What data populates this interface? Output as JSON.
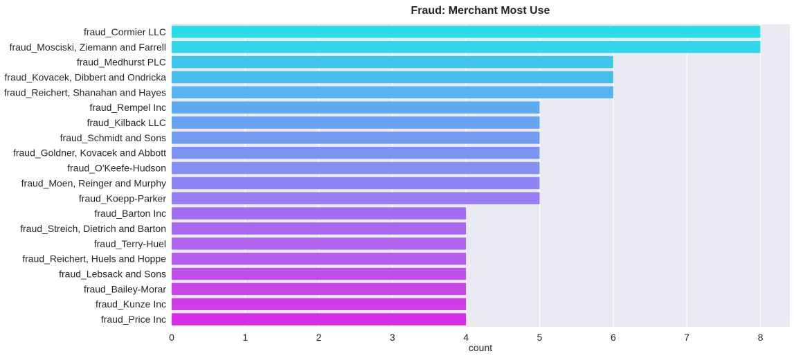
{
  "chart_data": {
    "type": "bar",
    "orientation": "horizontal",
    "title": "Fraud: Merchant Most Use",
    "xlabel": "count",
    "ylabel": "",
    "xlim": [
      0,
      8.4
    ],
    "xticks": [
      0,
      1,
      2,
      3,
      4,
      5,
      6,
      7,
      8
    ],
    "grid": true,
    "legend": "none",
    "palette": "cool",
    "plot_background": "#eaeaf2",
    "categories": [
      "fraud_Cormier LLC",
      "fraud_Mosciski, Ziemann and Farrell",
      "fraud_Medhurst PLC",
      "fraud_Kovacek, Dibbert and Ondricka",
      "fraud_Reichert, Shanahan and Hayes",
      "fraud_Rempel Inc",
      "fraud_Kilback LLC",
      "fraud_Schmidt and Sons",
      "fraud_Goldner, Kovacek and Abbott",
      "fraud_O'Keefe-Hudson",
      "fraud_Moen, Reinger and Murphy",
      "fraud_Koepp-Parker",
      "fraud_Barton Inc",
      "fraud_Streich, Dietrich and Barton",
      "fraud_Terry-Huel",
      "fraud_Reichert, Huels and Hoppe",
      "fraud_Lebsack and Sons",
      "fraud_Bailey-Morar",
      "fraud_Kunze Inc",
      "fraud_Price Inc"
    ],
    "values": [
      8,
      8,
      6,
      6,
      6,
      5,
      5,
      5,
      5,
      5,
      5,
      5,
      4,
      4,
      4,
      4,
      4,
      4,
      4,
      4
    ],
    "colors": [
      "#2adde6",
      "#35d6ec",
      "#3fc6ea",
      "#48bceb",
      "#56b4ee",
      "#5dabee",
      "#66a2f0",
      "#719df1",
      "#7b94f1",
      "#868ff2",
      "#8f84f3",
      "#997df3",
      "#a26ff2",
      "#a869ef",
      "#b065ed",
      "#b85ced",
      "#be51e8",
      "#c845e6",
      "#ce3ee6",
      "#d52ee4"
    ]
  }
}
